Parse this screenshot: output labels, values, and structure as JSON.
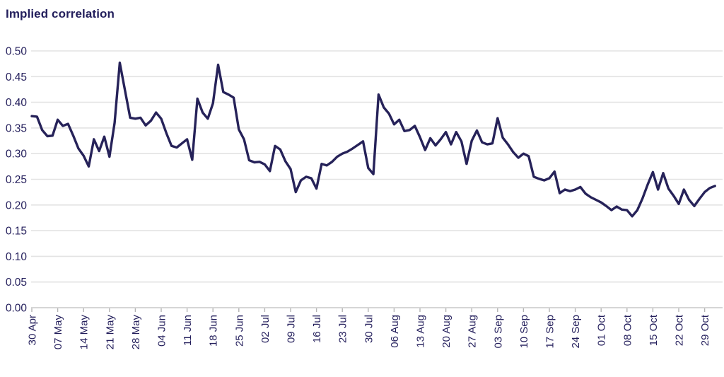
{
  "page": {
    "background_color": "#FFFFFF"
  },
  "chart_data": {
    "type": "line",
    "title": "Implied correlation",
    "legend": "none",
    "grid": "horizontal",
    "ylim": [
      0,
      0.5
    ],
    "y_ticks": [
      0,
      0.05,
      0.1,
      0.15,
      0.2,
      0.25,
      0.3,
      0.35,
      0.4,
      0.45,
      0.5
    ],
    "x_tick_labels": [
      "30 Apr",
      "07 May",
      "14 May",
      "21 May",
      "28 May",
      "04 Jun",
      "11 Jun",
      "18 Jun",
      "25 Jun",
      "02 Jul",
      "09 Jul",
      "16 Jul",
      "23 Jul",
      "30 Jul",
      "06 Aug",
      "13 Aug",
      "20 Aug",
      "27 Aug",
      "03 Sep",
      "10 Sep",
      "17 Sep",
      "24 Sep",
      "01 Oct",
      "08 Oct",
      "15 Oct",
      "22 Oct",
      "29 Oct"
    ],
    "points_per_tick": 5,
    "series": [
      {
        "name": "Implied correlation",
        "values": [
          0.373,
          0.372,
          0.346,
          0.334,
          0.335,
          0.366,
          0.354,
          0.358,
          0.335,
          0.31,
          0.296,
          0.275,
          0.328,
          0.305,
          0.333,
          0.294,
          0.36,
          0.477,
          0.423,
          0.37,
          0.368,
          0.37,
          0.355,
          0.364,
          0.38,
          0.368,
          0.34,
          0.315,
          0.312,
          0.32,
          0.328,
          0.288,
          0.407,
          0.38,
          0.368,
          0.398,
          0.473,
          0.42,
          0.415,
          0.409,
          0.347,
          0.328,
          0.287,
          0.283,
          0.284,
          0.279,
          0.266,
          0.315,
          0.308,
          0.285,
          0.27,
          0.225,
          0.248,
          0.255,
          0.252,
          0.232,
          0.28,
          0.277,
          0.284,
          0.294,
          0.3,
          0.304,
          0.31,
          0.317,
          0.324,
          0.272,
          0.26,
          0.415,
          0.39,
          0.378,
          0.357,
          0.366,
          0.344,
          0.346,
          0.354,
          0.332,
          0.307,
          0.33,
          0.316,
          0.328,
          0.342,
          0.318,
          0.342,
          0.324,
          0.28,
          0.325,
          0.345,
          0.322,
          0.318,
          0.32,
          0.369,
          0.331,
          0.318,
          0.303,
          0.292,
          0.3,
          0.295,
          0.255,
          0.251,
          0.248,
          0.252,
          0.265,
          0.223,
          0.23,
          0.227,
          0.23,
          0.235,
          0.222,
          0.215,
          0.21,
          0.205,
          0.198,
          0.19,
          0.197,
          0.191,
          0.19,
          0.178,
          0.19,
          0.213,
          0.24,
          0.264,
          0.23,
          0.262,
          0.232,
          0.218,
          0.202,
          0.23,
          0.21,
          0.198,
          0.212,
          0.225,
          0.233,
          0.237
        ]
      }
    ],
    "colors": {
      "line": "#262259",
      "grid": "#E3E3E3",
      "axis": "#C9C9C9",
      "tick": "#B3B3B3",
      "labels": "#241F5C",
      "title": "#231F5C"
    }
  }
}
